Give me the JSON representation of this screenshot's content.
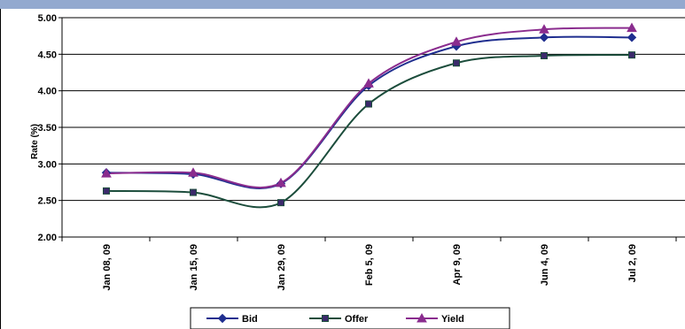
{
  "banner": {
    "title": ""
  },
  "chart_data": {
    "type": "line",
    "title": "",
    "xlabel": "",
    "ylabel": "Rate (%)",
    "ylim": [
      2.0,
      5.0
    ],
    "yticks": [
      "2.00",
      "2.50",
      "3.00",
      "3.50",
      "4.00",
      "4.50",
      "5.00"
    ],
    "grid": true,
    "legend_position": "bottom",
    "categories": [
      "Jan 08, 09",
      "Jan 15, 09",
      "Jan 29, 09",
      "Feb 5, 09",
      "Apr 9, 09",
      "Jun 4, 09",
      "Jul 2, 09"
    ],
    "series": [
      {
        "name": "Bid",
        "color": "#1f2e8f",
        "marker": "diamond",
        "values": [
          2.88,
          2.86,
          2.73,
          4.07,
          4.61,
          4.73,
          4.73
        ]
      },
      {
        "name": "Offer",
        "color": "#1c4d3c",
        "marker": "square",
        "values": [
          2.63,
          2.61,
          2.47,
          3.82,
          4.38,
          4.48,
          4.49
        ]
      },
      {
        "name": "Yield",
        "color": "#8a2c8e",
        "marker": "triangle",
        "values": [
          2.87,
          2.88,
          2.74,
          4.1,
          4.67,
          4.84,
          4.86
        ]
      }
    ]
  }
}
